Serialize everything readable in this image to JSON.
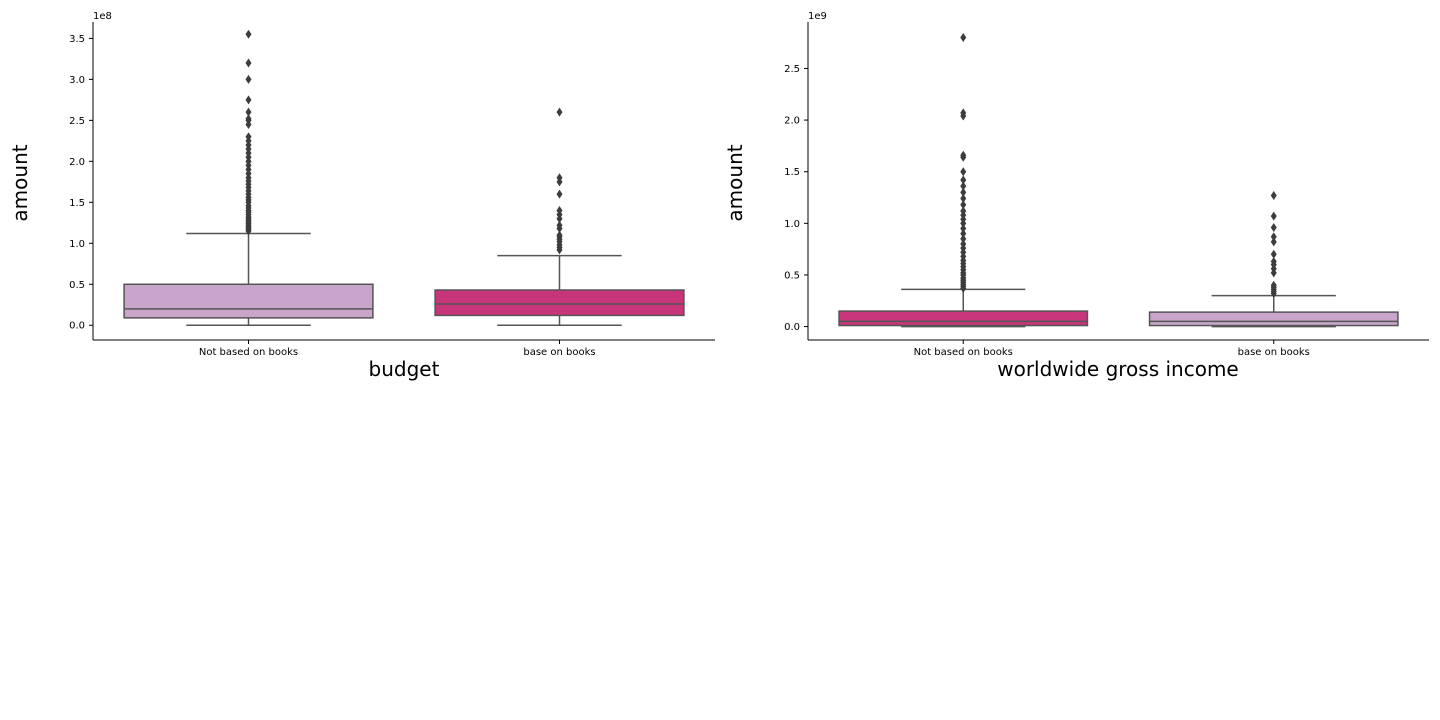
{
  "chart_data": [
    {
      "type": "box",
      "xlabel": "budget",
      "ylabel": "amount",
      "offset_label": "1e8",
      "categories": [
        "Not based on books",
        "base on books"
      ],
      "ylim": [
        -0.18,
        3.7
      ],
      "yticks": [
        0.0,
        0.5,
        1.0,
        1.5,
        2.0,
        2.5,
        3.0,
        3.5
      ],
      "ytick_labels": [
        "0.0",
        "0.5",
        "1.0",
        "1.5",
        "2.0",
        "2.5",
        "3.0",
        "3.5"
      ],
      "boxes": [
        {
          "category": "Not based on books",
          "color": "#c9a6c9",
          "whisker_low": 0.0,
          "q1": 0.09,
          "median": 0.2,
          "q3": 0.5,
          "whisker_high": 1.12,
          "outliers": [
            1.15,
            1.17,
            1.19,
            1.2,
            1.22,
            1.24,
            1.26,
            1.28,
            1.3,
            1.32,
            1.35,
            1.38,
            1.4,
            1.43,
            1.46,
            1.5,
            1.53,
            1.56,
            1.6,
            1.64,
            1.68,
            1.72,
            1.76,
            1.8,
            1.85,
            1.9,
            1.95,
            2.0,
            2.05,
            2.1,
            2.15,
            2.2,
            2.25,
            2.3,
            2.45,
            2.5,
            2.52,
            2.6,
            2.75,
            3.0,
            3.2,
            3.55
          ]
        },
        {
          "category": "base on books",
          "color": "#c8357a",
          "whisker_low": 0.0,
          "q1": 0.12,
          "median": 0.26,
          "q3": 0.43,
          "whisker_high": 0.85,
          "outliers": [
            0.92,
            0.95,
            0.98,
            1.02,
            1.05,
            1.08,
            1.1,
            1.18,
            1.22,
            1.3,
            1.35,
            1.4,
            1.6,
            1.75,
            1.8,
            2.6
          ]
        }
      ]
    },
    {
      "type": "box",
      "xlabel": "worldwide gross income",
      "ylabel": "amount",
      "offset_label": "1e9",
      "categories": [
        "Not based on books",
        "base on books"
      ],
      "ylim": [
        -0.13,
        2.95
      ],
      "yticks": [
        0.0,
        0.5,
        1.0,
        1.5,
        2.0,
        2.5
      ],
      "ytick_labels": [
        "0.0",
        "0.5",
        "1.0",
        "1.5",
        "2.0",
        "2.5"
      ],
      "boxes": [
        {
          "category": "Not based on books",
          "color": "#c8357a",
          "whisker_low": 0.0,
          "q1": 0.01,
          "median": 0.05,
          "q3": 0.15,
          "whisker_high": 0.36,
          "outliers": [
            0.37,
            0.39,
            0.41,
            0.43,
            0.45,
            0.47,
            0.5,
            0.52,
            0.55,
            0.58,
            0.61,
            0.64,
            0.68,
            0.72,
            0.76,
            0.8,
            0.85,
            0.9,
            0.95,
            1.0,
            1.04,
            1.08,
            1.12,
            1.18,
            1.24,
            1.3,
            1.36,
            1.42,
            1.5,
            1.64,
            1.66,
            2.04,
            2.07,
            2.8
          ]
        },
        {
          "category": "base on books",
          "color": "#c9a6c9",
          "whisker_low": 0.0,
          "q1": 0.01,
          "median": 0.05,
          "q3": 0.14,
          "whisker_high": 0.3,
          "outliers": [
            0.32,
            0.34,
            0.36,
            0.38,
            0.4,
            0.52,
            0.56,
            0.6,
            0.63,
            0.7,
            0.82,
            0.87,
            0.96,
            1.07,
            1.27
          ]
        }
      ]
    }
  ]
}
